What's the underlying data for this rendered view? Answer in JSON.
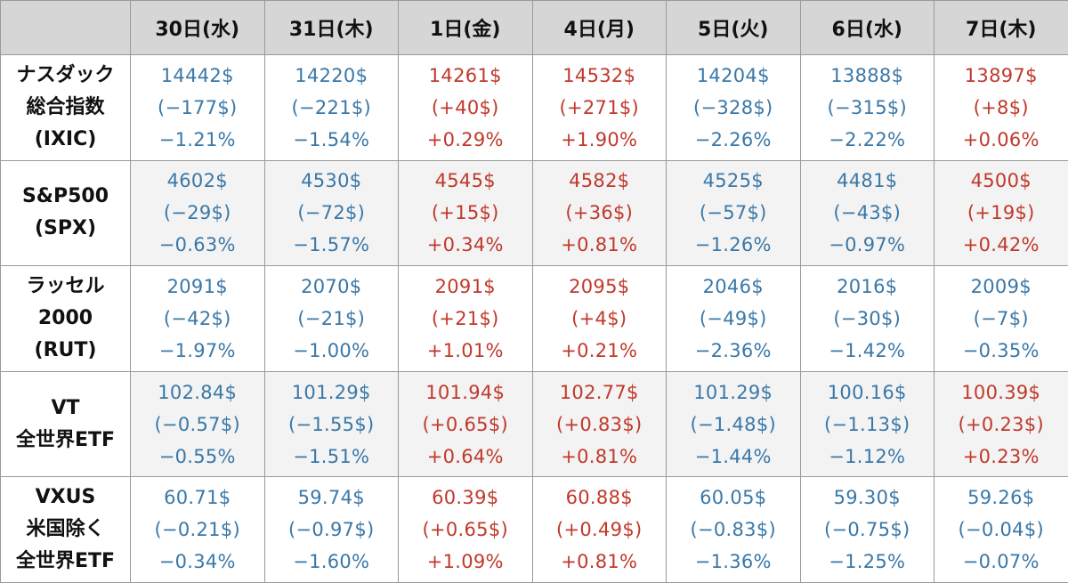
{
  "colors": {
    "down": "#3a78a8",
    "up": "#c0392b",
    "header_bg": "#d6d6d6"
  },
  "headers": [
    "",
    "30日(水)",
    "31日(木)",
    "1日(金)",
    "4日(月)",
    "5日(火)",
    "6日(水)",
    "7日(木)"
  ],
  "rows": [
    {
      "label": [
        "ナスダック",
        "総合指数",
        "(IXIC)"
      ],
      "cells": [
        {
          "dir": "down",
          "value": "14442$",
          "change": "(−177$)",
          "pct": "−1.21%"
        },
        {
          "dir": "down",
          "value": "14220$",
          "change": "(−221$)",
          "pct": "−1.54%"
        },
        {
          "dir": "up",
          "value": "14261$",
          "change": "(+40$)",
          "pct": "+0.29%"
        },
        {
          "dir": "up",
          "value": "14532$",
          "change": "(+271$)",
          "pct": "+1.90%"
        },
        {
          "dir": "down",
          "value": "14204$",
          "change": "(−328$)",
          "pct": "−2.26%"
        },
        {
          "dir": "down",
          "value": "13888$",
          "change": "(−315$)",
          "pct": "−2.22%"
        },
        {
          "dir": "up",
          "value": "13897$",
          "change": "(+8$)",
          "pct": "+0.06%"
        }
      ]
    },
    {
      "label": [
        "S&P500",
        "(SPX)"
      ],
      "cells": [
        {
          "dir": "down",
          "value": "4602$",
          "change": "(−29$)",
          "pct": "−0.63%"
        },
        {
          "dir": "down",
          "value": "4530$",
          "change": "(−72$)",
          "pct": "−1.57%"
        },
        {
          "dir": "up",
          "value": "4545$",
          "change": "(+15$)",
          "pct": "+0.34%"
        },
        {
          "dir": "up",
          "value": "4582$",
          "change": "(+36$)",
          "pct": "+0.81%"
        },
        {
          "dir": "down",
          "value": "4525$",
          "change": "(−57$)",
          "pct": "−1.26%"
        },
        {
          "dir": "down",
          "value": "4481$",
          "change": "(−43$)",
          "pct": "−0.97%"
        },
        {
          "dir": "up",
          "value": "4500$",
          "change": "(+19$)",
          "pct": "+0.42%"
        }
      ]
    },
    {
      "label": [
        "ラッセル",
        "2000",
        "(RUT)"
      ],
      "cells": [
        {
          "dir": "down",
          "value": "2091$",
          "change": "(−42$)",
          "pct": "−1.97%"
        },
        {
          "dir": "down",
          "value": "2070$",
          "change": "(−21$)",
          "pct": "−1.00%"
        },
        {
          "dir": "up",
          "value": "2091$",
          "change": "(+21$)",
          "pct": "+1.01%"
        },
        {
          "dir": "up",
          "value": "2095$",
          "change": "(+4$)",
          "pct": "+0.21%"
        },
        {
          "dir": "down",
          "value": "2046$",
          "change": "(−49$)",
          "pct": "−2.36%"
        },
        {
          "dir": "down",
          "value": "2016$",
          "change": "(−30$)",
          "pct": "−1.42%"
        },
        {
          "dir": "down",
          "value": "2009$",
          "change": "(−7$)",
          "pct": "−0.35%"
        }
      ]
    },
    {
      "label": [
        "VT",
        "全世界ETF"
      ],
      "cells": [
        {
          "dir": "down",
          "value": "102.84$",
          "change": "(−0.57$)",
          "pct": "−0.55%"
        },
        {
          "dir": "down",
          "value": "101.29$",
          "change": "(−1.55$)",
          "pct": "−1.51%"
        },
        {
          "dir": "up",
          "value": "101.94$",
          "change": "(+0.65$)",
          "pct": "+0.64%"
        },
        {
          "dir": "up",
          "value": "102.77$",
          "change": "(+0.83$)",
          "pct": "+0.81%"
        },
        {
          "dir": "down",
          "value": "101.29$",
          "change": "(−1.48$)",
          "pct": "−1.44%"
        },
        {
          "dir": "down",
          "value": "100.16$",
          "change": "(−1.13$)",
          "pct": "−1.12%"
        },
        {
          "dir": "up",
          "value": "100.39$",
          "change": "(+0.23$)",
          "pct": "+0.23%"
        }
      ]
    },
    {
      "label": [
        "VXUS",
        "米国除く",
        "全世界ETF"
      ],
      "cells": [
        {
          "dir": "down",
          "value": "60.71$",
          "change": "(−0.21$)",
          "pct": "−0.34%"
        },
        {
          "dir": "down",
          "value": "59.74$",
          "change": "(−0.97$)",
          "pct": "−1.60%"
        },
        {
          "dir": "up",
          "value": "60.39$",
          "change": "(+0.65$)",
          "pct": "+1.09%"
        },
        {
          "dir": "up",
          "value": "60.88$",
          "change": "(+0.49$)",
          "pct": "+0.81%"
        },
        {
          "dir": "down",
          "value": "60.05$",
          "change": "(−0.83$)",
          "pct": "−1.36%"
        },
        {
          "dir": "down",
          "value": "59.30$",
          "change": "(−0.75$)",
          "pct": "−1.25%"
        },
        {
          "dir": "down",
          "value": "59.26$",
          "change": "(−0.04$)",
          "pct": "−0.07%"
        }
      ]
    }
  ]
}
